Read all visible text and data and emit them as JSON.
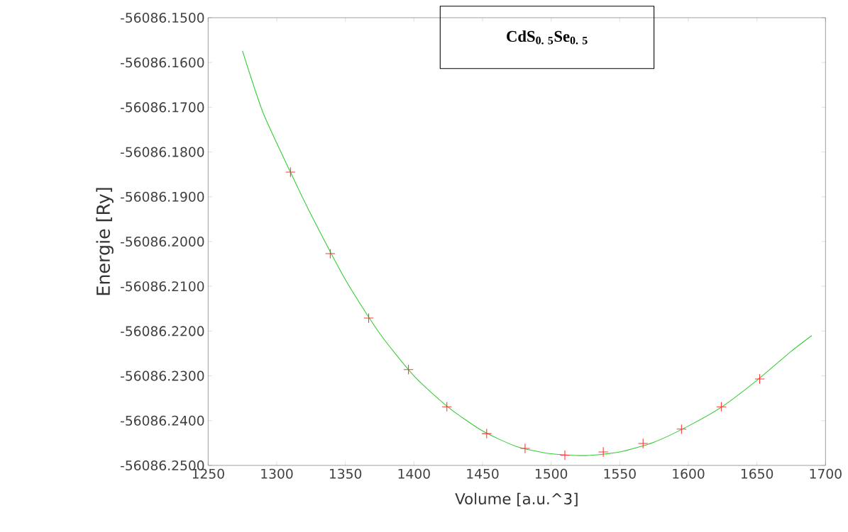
{
  "chart_data": {
    "type": "scatter",
    "xlabel": "Volume [a.u.^3]",
    "ylabel": "Energie [Ry]",
    "xlim": [
      1250,
      1700
    ],
    "xticks": [
      1250,
      1300,
      1350,
      1400,
      1450,
      1500,
      1550,
      1600,
      1650,
      1700
    ],
    "ylim": [
      -56086.25,
      -56086.15
    ],
    "yticks": [
      {
        "value": -56086.25,
        "label": "-56086.2500"
      },
      {
        "value": -56086.24,
        "label": "-56086.2400"
      },
      {
        "value": -56086.23,
        "label": "-56086.2300"
      },
      {
        "value": -56086.22,
        "label": "-56086.2200"
      },
      {
        "value": -56086.21,
        "label": "-56086.2100"
      },
      {
        "value": -56086.2,
        "label": "-56086.2000"
      },
      {
        "value": -56086.19,
        "label": "-56086.1900"
      },
      {
        "value": -56086.18,
        "label": "-56086.1800"
      },
      {
        "value": -56086.17,
        "label": "-56086.1700"
      },
      {
        "value": -56086.16,
        "label": "-56086.1600"
      },
      {
        "value": -56086.15,
        "label": "-56086.1500"
      }
    ],
    "grid": false,
    "annotations": [
      "CdS$_{0. 5}$Se$_{0. 5}$"
    ],
    "series": [
      {
        "type": "line",
        "color": "#33cc33",
        "marker": "none",
        "x": [
          1275,
          1290,
          1310,
          1325,
          1350,
          1375,
          1400,
          1425,
          1450,
          1475,
          1500,
          1525,
          1550,
          1575,
          1600,
          1625,
          1650,
          1675,
          1690
        ],
        "values": [
          -56086.1574,
          -56086.1712,
          -56086.1845,
          -56086.194,
          -56086.2085,
          -56086.2205,
          -56086.23,
          -56086.237,
          -56086.2423,
          -56086.2458,
          -56086.2474,
          -56086.2478,
          -56086.247,
          -56086.2448,
          -56086.2412,
          -56086.2368,
          -56086.231,
          -56086.2245,
          -56086.221
        ]
      },
      {
        "color": "#ff3333",
        "marker": "cross",
        "x": [
          1310,
          1339,
          1367,
          1396,
          1424,
          1453,
          1481,
          1510,
          1538,
          1567,
          1595,
          1624,
          1652
        ],
        "values": [
          -56086.1845,
          -56086.2027,
          -56086.2171,
          -56086.2286,
          -56086.2369,
          -56086.2429,
          -56086.2462,
          -56086.2477,
          -56086.247,
          -56086.2451,
          -56086.2419,
          -56086.2369,
          -56086.2307
        ]
      }
    ]
  }
}
